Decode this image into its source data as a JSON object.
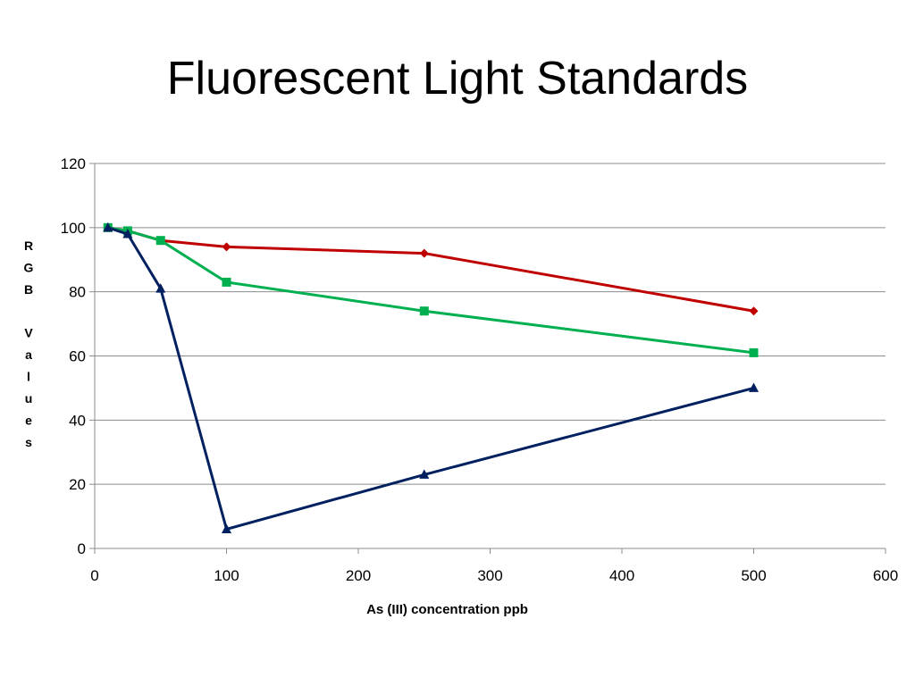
{
  "chart_data": {
    "type": "line",
    "title": "Fluorescent Light Standards",
    "xlabel": "As (III) concentration ppb",
    "ylabel": "RGB Values",
    "xlim": [
      0,
      600
    ],
    "ylim": [
      0,
      120
    ],
    "x_ticks": [
      "0",
      "100",
      "200",
      "300",
      "400",
      "500",
      "600"
    ],
    "y_ticks": [
      "0",
      "20",
      "40",
      "60",
      "80",
      "100",
      "120"
    ],
    "grid": true,
    "legend": "none",
    "series": [
      {
        "color": "#C00000",
        "marker": "diamond",
        "points": [
          [
            10,
            100
          ],
          [
            25,
            99
          ],
          [
            50,
            96
          ],
          [
            100,
            94
          ],
          [
            250,
            92
          ],
          [
            500,
            74
          ]
        ]
      },
      {
        "color": "#00B050",
        "marker": "square",
        "points": [
          [
            10,
            100
          ],
          [
            25,
            99
          ],
          [
            50,
            96
          ],
          [
            100,
            83
          ],
          [
            250,
            74
          ],
          [
            500,
            61
          ]
        ]
      },
      {
        "color": "#002060",
        "marker": "triangle",
        "points": [
          [
            10,
            100
          ],
          [
            25,
            98
          ],
          [
            50,
            81
          ],
          [
            100,
            6
          ],
          [
            250,
            23
          ],
          [
            500,
            50
          ]
        ]
      }
    ]
  }
}
